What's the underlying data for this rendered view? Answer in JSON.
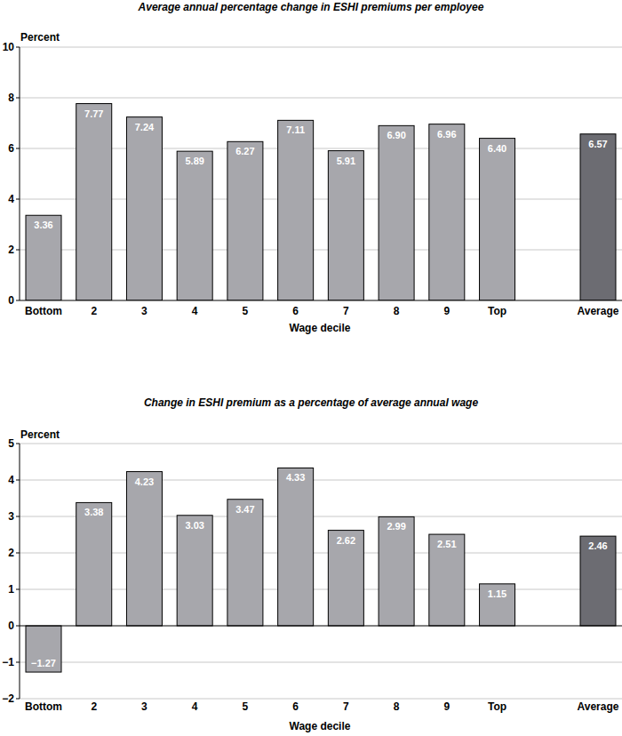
{
  "chart_data": [
    {
      "type": "bar",
      "title": "Average annual percentage change in ESHI premiums per employee",
      "y_label": "Percent",
      "x_label": "Wage decile",
      "categories": [
        "Bottom",
        "2",
        "3",
        "4",
        "5",
        "6",
        "7",
        "8",
        "9",
        "Top",
        null,
        "Average"
      ],
      "values": [
        3.36,
        7.77,
        7.24,
        5.89,
        6.27,
        7.11,
        5.91,
        6.9,
        6.96,
        6.4,
        null,
        6.57
      ],
      "value_labels": [
        "3.36",
        "7.77",
        "7.24",
        "5.89",
        "6.27",
        "7.11",
        "5.91",
        "6.90",
        "6.96",
        "6.40",
        null,
        "6.57"
      ],
      "colors": [
        "#a7a7ac",
        "#a7a7ac",
        "#a7a7ac",
        "#a7a7ac",
        "#a7a7ac",
        "#a7a7ac",
        "#a7a7ac",
        "#a7a7ac",
        "#a7a7ac",
        "#a7a7ac",
        null,
        "#6c6c72"
      ],
      "ylim": [
        0,
        10
      ],
      "yticks": [
        0,
        2,
        4,
        6,
        8,
        10
      ],
      "grid": true,
      "data_labels": true
    },
    {
      "type": "bar",
      "title": "Change in ESHI premium as a percentage of average annual wage",
      "y_label": "Percent",
      "x_label": "Wage decile",
      "categories": [
        "Bottom",
        "2",
        "3",
        "4",
        "5",
        "6",
        "7",
        "8",
        "9",
        "Top",
        null,
        "Average"
      ],
      "values": [
        -1.27,
        3.38,
        4.23,
        3.03,
        3.47,
        4.33,
        2.62,
        2.99,
        2.51,
        1.15,
        null,
        2.46
      ],
      "value_labels": [
        "−1.27",
        "3.38",
        "4.23",
        "3.03",
        "3.47",
        "4.33",
        "2.62",
        "2.99",
        "2.51",
        "1.15",
        null,
        "2.46"
      ],
      "colors": [
        "#a7a7ac",
        "#a7a7ac",
        "#a7a7ac",
        "#a7a7ac",
        "#a7a7ac",
        "#a7a7ac",
        "#a7a7ac",
        "#a7a7ac",
        "#a7a7ac",
        "#a7a7ac",
        null,
        "#6c6c72"
      ],
      "ylim": [
        -2,
        5
      ],
      "yticks": [
        {
          "value": -2,
          "label": "−2"
        },
        {
          "value": -1,
          "label": "−1"
        },
        0,
        1,
        2,
        3,
        4,
        5
      ],
      "grid": true,
      "data_labels": true
    }
  ]
}
